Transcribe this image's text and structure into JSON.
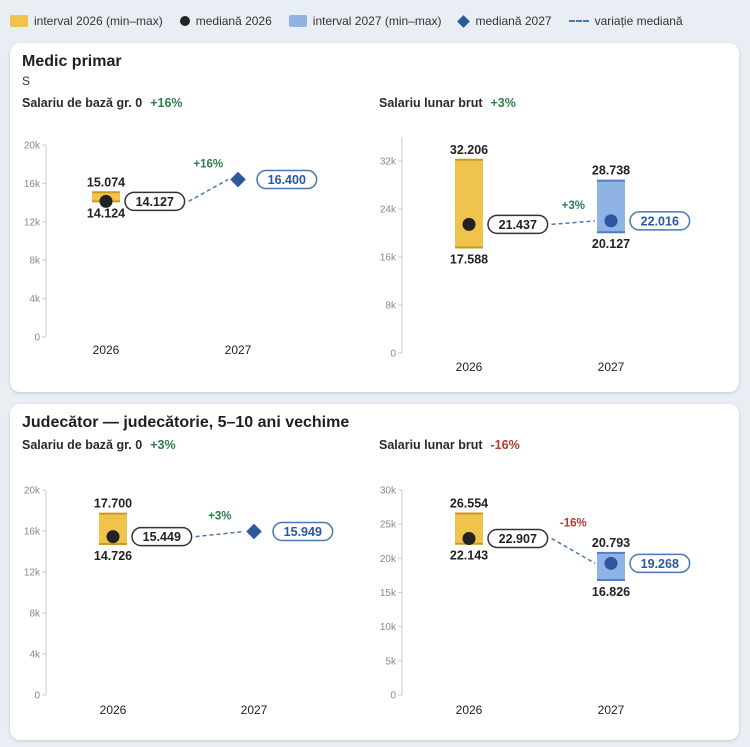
{
  "legend": {
    "items": [
      {
        "label": "interval 2026 (min–max)",
        "icon": "yellow-box",
        "color": "#f0c44c"
      },
      {
        "label": "mediană 2026",
        "icon": "black-dot",
        "color": "#222222"
      },
      {
        "label": "interval 2027 (min–max)",
        "icon": "blue-box",
        "color": "#8fb4e3"
      },
      {
        "label": "mediană 2027",
        "icon": "blue-diamond",
        "color": "#2d56a0"
      },
      {
        "label": "variație mediană",
        "icon": "dashed-line",
        "color": "#4a78b5"
      }
    ]
  },
  "cards": [
    {
      "title": "Medic primar",
      "subtitle": "S",
      "panels": [
        {
          "title": "Salariu de bază gr. 0",
          "pct": "+16%"
        },
        {
          "title": "Salariu lunar brut",
          "pct": "+3%"
        }
      ]
    },
    {
      "title": "Judecător — judecătorie, 5–10 ani vechime",
      "subtitle": "",
      "panels": [
        {
          "title": "Salariu de bază gr. 0",
          "pct": "+3%"
        },
        {
          "title": "Salariu lunar brut",
          "pct": "-16%"
        }
      ]
    }
  ],
  "chart_data": [
    {
      "type": "range-median",
      "title": "Salariu de bază gr. 0",
      "categories": [
        "2026",
        "2027"
      ],
      "ylim": [
        0,
        20000
      ],
      "yticks": [
        "0",
        "4k",
        "8k",
        "12k",
        "16k",
        "20k"
      ],
      "ytick_values": [
        0,
        4000,
        8000,
        12000,
        16000,
        20000
      ],
      "series": [
        {
          "year": "2026",
          "min": 14124,
          "max": 15074,
          "median": 14127,
          "min_label": "14.124",
          "max_label": "15.074",
          "median_label": "14.127"
        },
        {
          "year": "2027",
          "min": null,
          "max": null,
          "median": 16400,
          "min_label": "",
          "max_label": "",
          "median_label": "16.400"
        }
      ],
      "change_label": "+16%",
      "change_dir": "up"
    },
    {
      "type": "range-median",
      "title": "Salariu lunar brut",
      "categories": [
        "2026",
        "2027"
      ],
      "ylim": [
        0,
        36000
      ],
      "yticks": [
        "0",
        "8k",
        "16k",
        "24k",
        "32k"
      ],
      "ytick_values": [
        0,
        8000,
        16000,
        24000,
        32000
      ],
      "series": [
        {
          "year": "2026",
          "min": 17588,
          "max": 32206,
          "median": 21437,
          "min_label": "17.588",
          "max_label": "32.206",
          "median_label": "21.437"
        },
        {
          "year": "2027",
          "min": 20127,
          "max": 28738,
          "median": 22016,
          "min_label": "20.127",
          "max_label": "28.738",
          "median_label": "22.016"
        }
      ],
      "change_label": "+3%",
      "change_dir": "up"
    },
    {
      "type": "range-median",
      "title": "Salariu de bază gr. 0",
      "categories": [
        "2026",
        "2027"
      ],
      "ylim": [
        0,
        20000
      ],
      "yticks": [
        "0",
        "4k",
        "8k",
        "12k",
        "16k",
        "20k"
      ],
      "ytick_values": [
        0,
        4000,
        8000,
        12000,
        16000,
        20000
      ],
      "series": [
        {
          "year": "2026",
          "min": 14726,
          "max": 17700,
          "median": 15449,
          "min_label": "14.726",
          "max_label": "17.700",
          "median_label": "15.449"
        },
        {
          "year": "2027",
          "min": null,
          "max": null,
          "median": 15949,
          "min_label": "",
          "max_label": "",
          "median_label": "15.949"
        }
      ],
      "change_label": "+3%",
      "change_dir": "up"
    },
    {
      "type": "range-median",
      "title": "Salariu lunar brut",
      "categories": [
        "2026",
        "2027"
      ],
      "ylim": [
        0,
        30000
      ],
      "yticks": [
        "0",
        "5k",
        "10k",
        "15k",
        "20k",
        "25k",
        "30k"
      ],
      "ytick_values": [
        0,
        5000,
        10000,
        15000,
        20000,
        25000,
        30000
      ],
      "series": [
        {
          "year": "2026",
          "min": 22143,
          "max": 26554,
          "median": 22907,
          "min_label": "22.143",
          "max_label": "26.554",
          "median_label": "22.907"
        },
        {
          "year": "2027",
          "min": 16826,
          "max": 20793,
          "median": 19268,
          "min_label": "16.826",
          "max_label": "20.793",
          "median_label": "19.268"
        }
      ],
      "change_label": "-16%",
      "change_dir": "down"
    }
  ]
}
